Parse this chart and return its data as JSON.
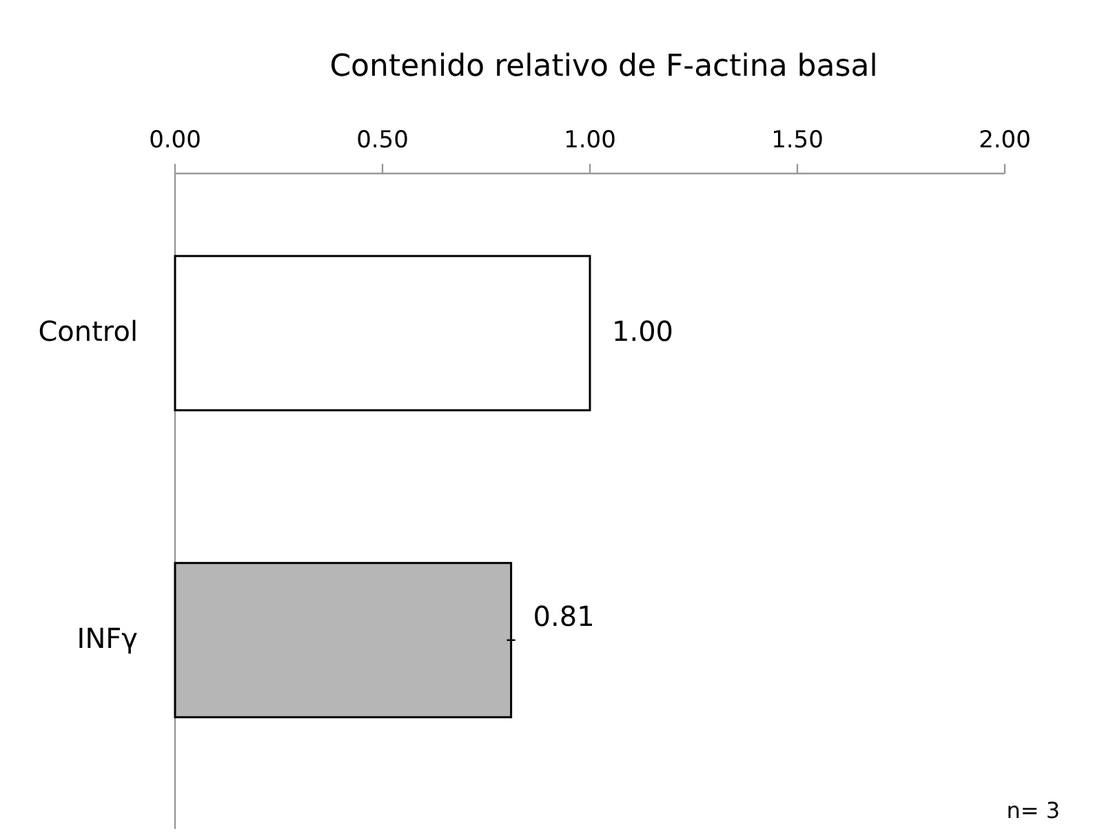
{
  "chart_data": {
    "type": "bar",
    "orientation": "horizontal",
    "title": "Contenido relativo de F-actina basal",
    "categories": [
      "Control",
      "INFγ"
    ],
    "values": [
      1.0,
      0.81
    ],
    "colors": [
      "#ffffff",
      "#b6b6b6"
    ],
    "errors": [
      null,
      0.01
    ],
    "xlim": [
      0,
      2
    ],
    "xticks": [
      {
        "value": 0,
        "label": "0.00"
      },
      {
        "value": 0.5,
        "label": "0.50"
      },
      {
        "value": 1,
        "label": "1.00"
      },
      {
        "value": 1.5,
        "label": "1.50"
      },
      {
        "value": 2,
        "label": "2.00"
      }
    ],
    "value_labels": [
      "1.00",
      "0.81"
    ],
    "annotations": [
      "n= 3"
    ]
  }
}
